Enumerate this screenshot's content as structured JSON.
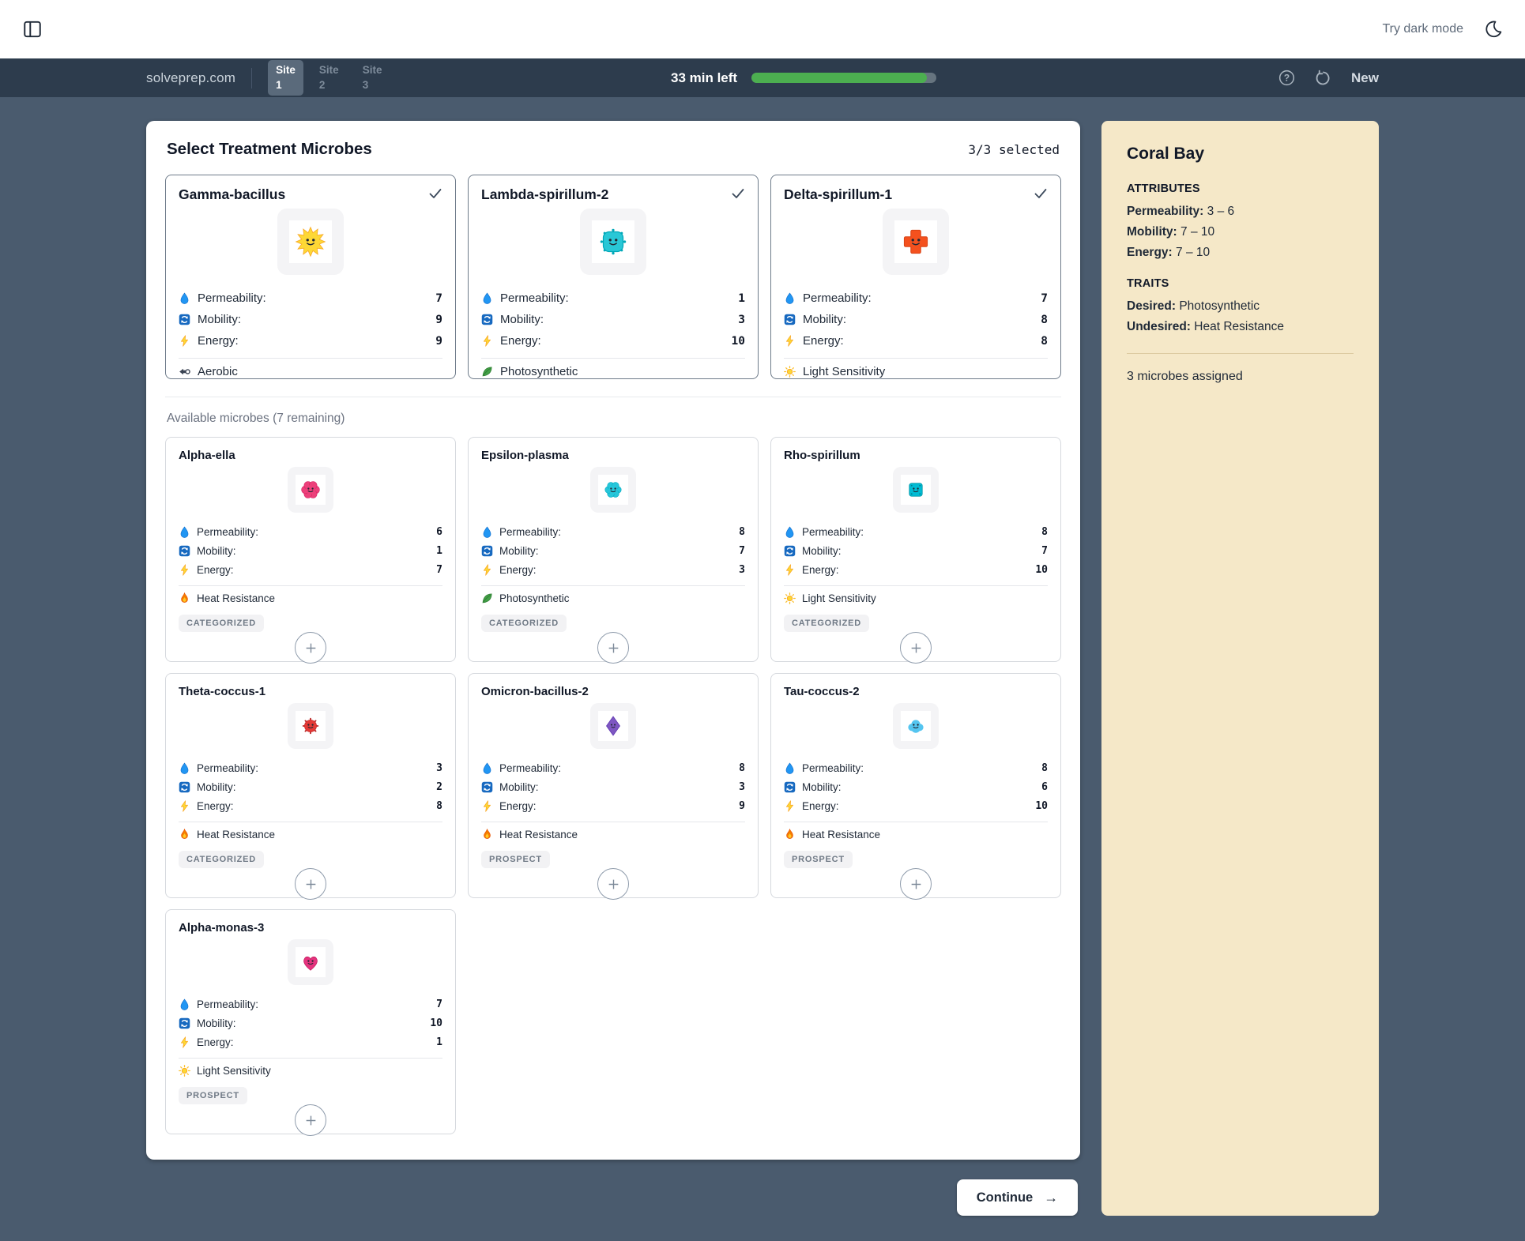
{
  "topbar": {
    "dark_mode_label": "Try dark mode"
  },
  "header": {
    "brand": "solveprep.com",
    "tabs": [
      {
        "label": "Site",
        "number": "1",
        "active": true
      },
      {
        "label": "Site",
        "number": "2",
        "active": false
      },
      {
        "label": "Site",
        "number": "3",
        "active": false
      }
    ],
    "timer": "33 min left",
    "progress_percent": 95,
    "new_label": "New"
  },
  "panel": {
    "title": "Select Treatment Microbes",
    "selected_count": "3/3 selected",
    "available_label": "Available microbes (7 remaining)"
  },
  "stats": [
    {
      "key": "permeability",
      "label": "Permeability:",
      "icon": "droplet-icon"
    },
    {
      "key": "mobility",
      "label": "Mobility:",
      "icon": "mobility-icon"
    },
    {
      "key": "energy",
      "label": "Energy:",
      "icon": "lightning-icon"
    }
  ],
  "selected_microbes": [
    {
      "name": "Gamma-bacillus",
      "avatar": "sun-creature",
      "permeability": 7,
      "mobility": 9,
      "energy": 9,
      "trait": "Aerobic",
      "trait_icon": "aerobic-icon",
      "selected": true
    },
    {
      "name": "Lambda-spirillum-2",
      "avatar": "teal-spiky-square-creature",
      "permeability": 1,
      "mobility": 3,
      "energy": 10,
      "trait": "Photosynthetic",
      "trait_icon": "leaf-icon",
      "selected": true
    },
    {
      "name": "Delta-spirillum-1",
      "avatar": "orange-cross-creature",
      "permeability": 7,
      "mobility": 8,
      "energy": 8,
      "trait": "Light Sensitivity",
      "trait_icon": "sun-icon",
      "selected": true
    }
  ],
  "available_microbes": [
    {
      "name": "Alpha-ella",
      "avatar": "pink-flower-creature",
      "permeability": 6,
      "mobility": 1,
      "energy": 7,
      "trait": "Heat Resistance",
      "trait_icon": "flame-icon",
      "badge": "CATEGORIZED"
    },
    {
      "name": "Epsilon-plasma",
      "avatar": "teal-flower-creature",
      "permeability": 8,
      "mobility": 7,
      "energy": 3,
      "trait": "Photosynthetic",
      "trait_icon": "leaf-icon",
      "badge": "CATEGORIZED"
    },
    {
      "name": "Rho-spirillum",
      "avatar": "teal-square-creature",
      "permeability": 8,
      "mobility": 7,
      "energy": 10,
      "trait": "Light Sensitivity",
      "trait_icon": "sun-icon",
      "badge": "CATEGORIZED"
    },
    {
      "name": "Theta-coccus-1",
      "avatar": "red-spiky-creature",
      "permeability": 3,
      "mobility": 2,
      "energy": 8,
      "trait": "Heat Resistance",
      "trait_icon": "flame-icon",
      "badge": "CATEGORIZED"
    },
    {
      "name": "Omicron-bacillus-2",
      "avatar": "purple-diamond-creature",
      "permeability": 8,
      "mobility": 3,
      "energy": 9,
      "trait": "Heat Resistance",
      "trait_icon": "flame-icon",
      "badge": "PROSPECT"
    },
    {
      "name": "Tau-coccus-2",
      "avatar": "blue-cloud-creature",
      "permeability": 8,
      "mobility": 6,
      "energy": 10,
      "trait": "Heat Resistance",
      "trait_icon": "flame-icon",
      "badge": "PROSPECT"
    },
    {
      "name": "Alpha-monas-3",
      "avatar": "pink-heart-creature",
      "permeability": 7,
      "mobility": 10,
      "energy": 1,
      "trait": "Light Sensitivity",
      "trait_icon": "sun-icon",
      "badge": "PROSPECT"
    }
  ],
  "sidebar": {
    "title": "Coral Bay",
    "attributes_heading": "ATTRIBUTES",
    "attributes": [
      {
        "label": "Permeability:",
        "value": "3 – 6"
      },
      {
        "label": "Mobility:",
        "value": "7 – 10"
      },
      {
        "label": "Energy:",
        "value": "7 – 10"
      }
    ],
    "traits_heading": "TRAITS",
    "traits": [
      {
        "label": "Desired:",
        "value": "Photosynthetic"
      },
      {
        "label": "Undesired:",
        "value": "Heat Resistance"
      }
    ],
    "assigned_note": "3 microbes assigned"
  },
  "footer": {
    "continue_label": "Continue"
  },
  "colors": {
    "page_background": "#4a5b6e",
    "nav_background": "#2d3c4d",
    "progress_green": "#4caf50",
    "sidebar_cream": "#f5e8c8"
  }
}
